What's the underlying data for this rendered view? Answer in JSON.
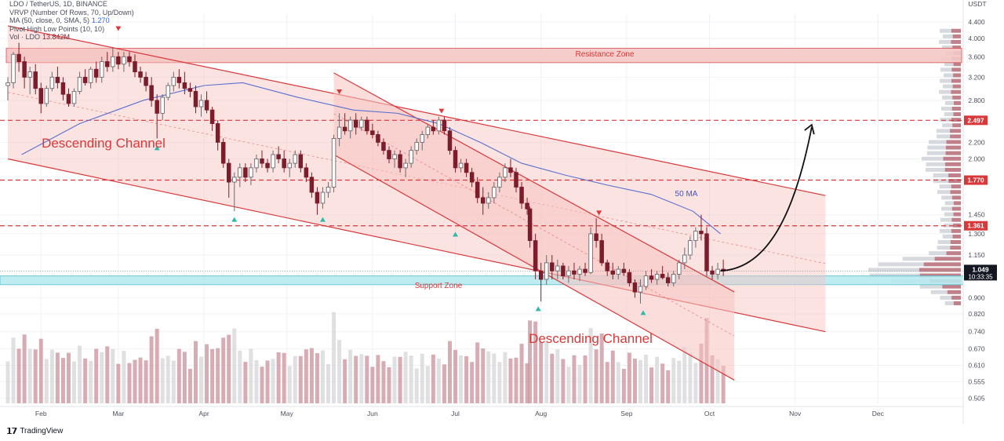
{
  "legend": {
    "line1": "LDO / TetherUS, 1D, BINANCE",
    "line2": "VRVP (Number Of Rows, 70, Up/Down)",
    "line3_label": "MA (50, close, 0, SMA, 5)",
    "line3_value": "1.270",
    "line4": "Pivot High Low Points (10, 10)",
    "line5_label": "Vol · LDO",
    "line5_value": "13.842M",
    "currency": "USDT"
  },
  "brand": "TradingView",
  "colors": {
    "up": "#d9d9d9",
    "down": "#7c1d2b",
    "up_body": "#ffffff",
    "channel_fill": "#f7c2bf",
    "channel_line": "#d9383a",
    "support": "#b9eaf0",
    "ma": "#5a6fd0",
    "dashed": "#d9383a",
    "pivot_high": "#d9383a",
    "pivot_low": "#2fb9a8"
  },
  "chart_data": {
    "type": "candlestick",
    "symbol": "LDO/USDT",
    "timeframe": "1D",
    "exchange": "BINANCE",
    "x_axis": {
      "months": [
        "Feb",
        "Mar",
        "Apr",
        "May",
        "Jun",
        "Jul",
        "Aug",
        "Sep",
        "Oct",
        "Nov",
        "Dec"
      ],
      "x_range": [
        "2022-01-20",
        "2022-12-31"
      ]
    },
    "y_axis": {
      "scale": "log",
      "ylim": [
        0.49,
        4.6
      ],
      "ticks": [
        "4.400",
        "4.000",
        "3.600",
        "3.200",
        "2.800",
        "2.497",
        "2.200",
        "2.000",
        "1.770",
        "1.450",
        "1.361",
        "1.300",
        "1.150",
        "1.049",
        "0.900",
        "0.820",
        "0.740",
        "0.670",
        "0.610",
        "0.555",
        "0.505"
      ]
    },
    "price_labels": [
      {
        "value": "2.497",
        "kind": "level"
      },
      {
        "value": "1.770",
        "kind": "level"
      },
      {
        "value": "1.361",
        "kind": "level"
      },
      {
        "value": "1.049",
        "kind": "last",
        "countdown": "10:33:35"
      }
    ],
    "levels": [
      2.497,
      1.77,
      1.361
    ],
    "zones": [
      {
        "label": "Resistance Zone",
        "from": 3.48,
        "to": 3.78
      },
      {
        "label": "Support Zone",
        "from": 0.97,
        "to": 1.02
      }
    ],
    "ma_label": "50 MA",
    "ma_50": [
      [
        "2022-01-25",
        2.05
      ],
      [
        "2022-02-15",
        2.45
      ],
      [
        "2022-03-10",
        2.8
      ],
      [
        "2022-04-01",
        3.05
      ],
      [
        "2022-04-15",
        3.1
      ],
      [
        "2022-05-05",
        2.85
      ],
      [
        "2022-05-25",
        2.65
      ],
      [
        "2022-06-10",
        2.6
      ],
      [
        "2022-06-25",
        2.45
      ],
      [
        "2022-07-10",
        2.2
      ],
      [
        "2022-07-25",
        1.95
      ],
      [
        "2022-08-10",
        1.82
      ],
      [
        "2022-08-25",
        1.72
      ],
      [
        "2022-09-10",
        1.63
      ],
      [
        "2022-09-25",
        1.48
      ],
      [
        "2022-10-05",
        1.3
      ]
    ],
    "channels": [
      {
        "label": "Descending Channel",
        "upper": [
          [
            "2022-01-20",
            4.3
          ],
          [
            "2022-11-12",
            1.62
          ]
        ],
        "lower": [
          [
            "2022-01-20",
            2.0
          ],
          [
            "2022-11-12",
            0.74
          ]
        ]
      },
      {
        "label": "Descending Channel",
        "upper": [
          [
            "2022-05-18",
            3.28
          ],
          [
            "2022-10-10",
            0.93
          ]
        ],
        "lower": [
          [
            "2022-05-18",
            2.05
          ],
          [
            "2022-10-10",
            0.56
          ]
        ]
      }
    ],
    "projection": [
      [
        "2022-10-05",
        1.05
      ],
      [
        "2022-10-20",
        1.1
      ],
      [
        "2022-10-31",
        1.7
      ],
      [
        "2022-11-07",
        2.4
      ]
    ],
    "pivot_highs": [
      [
        "2022-03-01",
        4.1
      ],
      [
        "2022-05-20",
        2.85
      ],
      [
        "2022-06-26",
        2.55
      ],
      [
        "2022-08-22",
        1.42
      ]
    ],
    "pivot_lows": [
      [
        "2022-03-15",
        2.22
      ],
      [
        "2022-04-12",
        1.47
      ],
      [
        "2022-05-14",
        1.47
      ],
      [
        "2022-07-01",
        1.35
      ],
      [
        "2022-07-31",
        0.88
      ],
      [
        "2022-09-07",
        0.86
      ]
    ],
    "candles": [
      [
        "2022-01-20",
        3.05,
        3.2,
        2.8,
        3.1
      ],
      [
        "2022-01-22",
        3.1,
        3.7,
        3.0,
        3.65
      ],
      [
        "2022-01-24",
        3.65,
        3.9,
        3.3,
        3.5
      ],
      [
        "2022-01-26",
        3.5,
        3.6,
        3.0,
        3.2
      ],
      [
        "2022-01-28",
        3.2,
        3.4,
        2.9,
        3.3
      ],
      [
        "2022-01-30",
        3.3,
        3.45,
        2.9,
        3.0
      ],
      [
        "2022-02-01",
        3.0,
        3.1,
        2.6,
        2.75
      ],
      [
        "2022-02-03",
        2.75,
        3.05,
        2.7,
        3.0
      ],
      [
        "2022-02-05",
        3.0,
        3.3,
        2.95,
        3.2
      ],
      [
        "2022-02-07",
        3.2,
        3.4,
        3.0,
        3.1
      ],
      [
        "2022-02-09",
        3.1,
        3.2,
        2.8,
        2.9
      ],
      [
        "2022-02-11",
        2.9,
        3.0,
        2.7,
        2.75
      ],
      [
        "2022-02-13",
        2.75,
        3.0,
        2.7,
        2.95
      ],
      [
        "2022-02-15",
        2.95,
        3.3,
        2.9,
        3.2
      ],
      [
        "2022-02-17",
        3.2,
        3.35,
        3.05,
        3.1
      ],
      [
        "2022-02-19",
        3.1,
        3.4,
        3.0,
        3.35
      ],
      [
        "2022-02-21",
        3.35,
        3.5,
        3.1,
        3.2
      ],
      [
        "2022-02-23",
        3.2,
        3.6,
        3.1,
        3.5
      ],
      [
        "2022-02-25",
        3.5,
        3.7,
        3.3,
        3.4
      ],
      [
        "2022-02-27",
        3.4,
        3.8,
        3.3,
        3.6
      ],
      [
        "2022-03-01",
        3.6,
        3.7,
        3.35,
        3.45
      ],
      [
        "2022-03-03",
        3.45,
        3.7,
        3.3,
        3.6
      ],
      [
        "2022-03-05",
        3.6,
        3.7,
        3.4,
        3.5
      ],
      [
        "2022-03-07",
        3.5,
        3.65,
        3.2,
        3.3
      ],
      [
        "2022-03-09",
        3.3,
        3.4,
        3.1,
        3.2
      ],
      [
        "2022-03-11",
        3.2,
        3.3,
        2.95,
        3.05
      ],
      [
        "2022-03-13",
        3.05,
        3.2,
        2.7,
        2.8
      ],
      [
        "2022-03-15",
        2.8,
        2.9,
        2.25,
        2.6
      ],
      [
        "2022-03-17",
        2.6,
        2.9,
        2.5,
        2.85
      ],
      [
        "2022-03-19",
        2.85,
        3.1,
        2.8,
        3.05
      ],
      [
        "2022-03-21",
        3.05,
        3.3,
        2.95,
        3.2
      ],
      [
        "2022-03-23",
        3.2,
        3.35,
        3.0,
        3.1
      ],
      [
        "2022-03-25",
        3.1,
        3.3,
        2.9,
        3.0
      ],
      [
        "2022-03-27",
        3.0,
        3.1,
        2.85,
        2.95
      ],
      [
        "2022-03-29",
        2.95,
        3.05,
        2.6,
        2.7
      ],
      [
        "2022-03-31",
        2.7,
        2.9,
        2.55,
        2.8
      ],
      [
        "2022-04-02",
        2.8,
        2.95,
        2.6,
        2.65
      ],
      [
        "2022-04-04",
        2.65,
        2.7,
        2.35,
        2.45
      ],
      [
        "2022-04-06",
        2.45,
        2.5,
        2.1,
        2.2
      ],
      [
        "2022-04-08",
        2.2,
        2.25,
        1.9,
        1.95
      ],
      [
        "2022-04-10",
        1.95,
        2.0,
        1.6,
        1.75
      ],
      [
        "2022-04-12",
        1.75,
        1.85,
        1.48,
        1.8
      ],
      [
        "2022-04-14",
        1.8,
        1.95,
        1.7,
        1.9
      ],
      [
        "2022-04-16",
        1.9,
        1.95,
        1.75,
        1.8
      ],
      [
        "2022-04-18",
        1.8,
        1.95,
        1.72,
        1.9
      ],
      [
        "2022-04-20",
        1.9,
        2.05,
        1.85,
        2.0
      ],
      [
        "2022-04-22",
        2.0,
        2.1,
        1.9,
        1.95
      ],
      [
        "2022-04-24",
        1.95,
        2.0,
        1.85,
        1.9
      ],
      [
        "2022-04-26",
        1.9,
        2.1,
        1.85,
        2.05
      ],
      [
        "2022-04-28",
        2.05,
        2.15,
        1.95,
        2.0
      ],
      [
        "2022-04-30",
        2.0,
        2.1,
        1.85,
        1.9
      ],
      [
        "2022-05-02",
        1.9,
        2.0,
        1.8,
        1.95
      ],
      [
        "2022-05-04",
        1.95,
        2.1,
        1.9,
        2.05
      ],
      [
        "2022-05-06",
        2.05,
        2.1,
        1.85,
        1.9
      ],
      [
        "2022-05-08",
        1.9,
        1.95,
        1.75,
        1.8
      ],
      [
        "2022-05-10",
        1.8,
        1.85,
        1.6,
        1.65
      ],
      [
        "2022-05-12",
        1.65,
        1.7,
        1.45,
        1.55
      ],
      [
        "2022-05-14",
        1.55,
        1.7,
        1.5,
        1.65
      ],
      [
        "2022-05-16",
        1.65,
        1.75,
        1.6,
        1.7
      ],
      [
        "2022-05-18",
        1.7,
        2.3,
        1.65,
        2.25
      ],
      [
        "2022-05-20",
        2.25,
        2.6,
        2.15,
        2.4
      ],
      [
        "2022-05-22",
        2.4,
        2.6,
        2.3,
        2.35
      ],
      [
        "2022-05-24",
        2.35,
        2.55,
        2.25,
        2.5
      ],
      [
        "2022-05-26",
        2.5,
        2.6,
        2.3,
        2.4
      ],
      [
        "2022-05-28",
        2.4,
        2.55,
        2.35,
        2.5
      ],
      [
        "2022-05-30",
        2.5,
        2.55,
        2.3,
        2.35
      ],
      [
        "2022-06-01",
        2.35,
        2.45,
        2.25,
        2.3
      ],
      [
        "2022-06-03",
        2.3,
        2.35,
        2.15,
        2.2
      ],
      [
        "2022-06-05",
        2.2,
        2.25,
        2.05,
        2.1
      ],
      [
        "2022-06-07",
        2.1,
        2.15,
        1.95,
        2.0
      ],
      [
        "2022-06-09",
        2.0,
        2.1,
        1.9,
        2.05
      ],
      [
        "2022-06-11",
        2.05,
        2.1,
        1.85,
        1.9
      ],
      [
        "2022-06-13",
        1.9,
        2.0,
        1.8,
        1.95
      ],
      [
        "2022-06-15",
        1.95,
        2.15,
        1.9,
        2.1
      ],
      [
        "2022-06-17",
        2.1,
        2.25,
        2.05,
        2.2
      ],
      [
        "2022-06-19",
        2.2,
        2.35,
        2.1,
        2.3
      ],
      [
        "2022-06-21",
        2.3,
        2.45,
        2.25,
        2.4
      ],
      [
        "2022-06-23",
        2.4,
        2.5,
        2.3,
        2.35
      ],
      [
        "2022-06-25",
        2.35,
        2.55,
        2.3,
        2.5
      ],
      [
        "2022-06-27",
        2.5,
        2.55,
        2.3,
        2.35
      ],
      [
        "2022-06-29",
        2.35,
        2.4,
        2.05,
        2.1
      ],
      [
        "2022-07-01",
        2.1,
        2.15,
        1.85,
        1.9
      ],
      [
        "2022-07-03",
        1.9,
        2.0,
        1.85,
        1.95
      ],
      [
        "2022-07-05",
        1.95,
        2.0,
        1.8,
        1.85
      ],
      [
        "2022-07-07",
        1.85,
        1.9,
        1.7,
        1.75
      ],
      [
        "2022-07-09",
        1.75,
        1.8,
        1.55,
        1.6
      ],
      [
        "2022-07-11",
        1.6,
        1.7,
        1.45,
        1.55
      ],
      [
        "2022-07-13",
        1.55,
        1.65,
        1.5,
        1.6
      ],
      [
        "2022-07-15",
        1.6,
        1.75,
        1.55,
        1.7
      ],
      [
        "2022-07-17",
        1.7,
        1.85,
        1.65,
        1.8
      ],
      [
        "2022-07-19",
        1.8,
        1.95,
        1.75,
        1.9
      ],
      [
        "2022-07-21",
        1.9,
        2.0,
        1.8,
        1.85
      ],
      [
        "2022-07-23",
        1.85,
        1.9,
        1.65,
        1.7
      ],
      [
        "2022-07-25",
        1.7,
        1.75,
        1.5,
        1.55
      ],
      [
        "2022-07-27",
        1.55,
        1.6,
        1.45,
        1.5
      ],
      [
        "2022-07-28",
        1.5,
        1.52,
        1.2,
        1.25
      ],
      [
        "2022-07-30",
        1.25,
        1.3,
        1.0,
        1.05
      ],
      [
        "2022-08-01",
        1.05,
        1.1,
        0.88,
        1.0
      ],
      [
        "2022-08-03",
        1.0,
        1.15,
        0.97,
        1.1
      ],
      [
        "2022-08-05",
        1.1,
        1.15,
        1.0,
        1.05
      ],
      [
        "2022-08-07",
        1.05,
        1.12,
        1.0,
        1.08
      ],
      [
        "2022-08-09",
        1.08,
        1.1,
        1.0,
        1.02
      ],
      [
        "2022-08-11",
        1.02,
        1.08,
        0.98,
        1.05
      ],
      [
        "2022-08-13",
        1.05,
        1.1,
        1.0,
        1.03
      ],
      [
        "2022-08-15",
        1.03,
        1.08,
        0.99,
        1.06
      ],
      [
        "2022-08-17",
        1.06,
        1.1,
        1.02,
        1.04
      ],
      [
        "2022-08-19",
        1.04,
        1.35,
        1.03,
        1.3
      ],
      [
        "2022-08-21",
        1.3,
        1.42,
        1.2,
        1.25
      ],
      [
        "2022-08-23",
        1.25,
        1.3,
        1.08,
        1.1
      ],
      [
        "2022-08-25",
        1.1,
        1.12,
        1.02,
        1.05
      ],
      [
        "2022-08-27",
        1.05,
        1.1,
        1.0,
        1.03
      ],
      [
        "2022-08-29",
        1.03,
        1.08,
        1.0,
        1.06
      ],
      [
        "2022-08-31",
        1.06,
        1.1,
        1.02,
        1.04
      ],
      [
        "2022-09-02",
        1.04,
        1.06,
        0.96,
        0.98
      ],
      [
        "2022-09-04",
        0.98,
        1.0,
        0.9,
        0.93
      ],
      [
        "2022-09-06",
        0.93,
        1.0,
        0.87,
        0.96
      ],
      [
        "2022-09-08",
        0.96,
        1.05,
        0.94,
        1.02
      ],
      [
        "2022-09-10",
        1.02,
        1.06,
        0.98,
        1.0
      ],
      [
        "2022-09-12",
        1.0,
        1.05,
        0.97,
        1.03
      ],
      [
        "2022-09-14",
        1.03,
        1.08,
        1.0,
        1.01
      ],
      [
        "2022-09-16",
        1.01,
        1.04,
        0.96,
        0.98
      ],
      [
        "2022-09-18",
        0.98,
        1.05,
        0.96,
        1.03
      ],
      [
        "2022-09-20",
        1.03,
        1.12,
        1.0,
        1.1
      ],
      [
        "2022-09-22",
        1.1,
        1.2,
        1.06,
        1.15
      ],
      [
        "2022-09-24",
        1.15,
        1.28,
        1.12,
        1.25
      ],
      [
        "2022-09-26",
        1.25,
        1.35,
        1.2,
        1.32
      ],
      [
        "2022-09-28",
        1.32,
        1.45,
        1.25,
        1.3
      ],
      [
        "2022-09-30",
        1.3,
        1.35,
        1.02,
        1.05
      ],
      [
        "2022-10-02",
        1.05,
        1.08,
        1.0,
        1.03
      ],
      [
        "2022-10-04",
        1.03,
        1.1,
        1.0,
        1.06
      ],
      [
        "2022-10-06",
        1.06,
        1.12,
        1.02,
        1.049
      ]
    ]
  }
}
